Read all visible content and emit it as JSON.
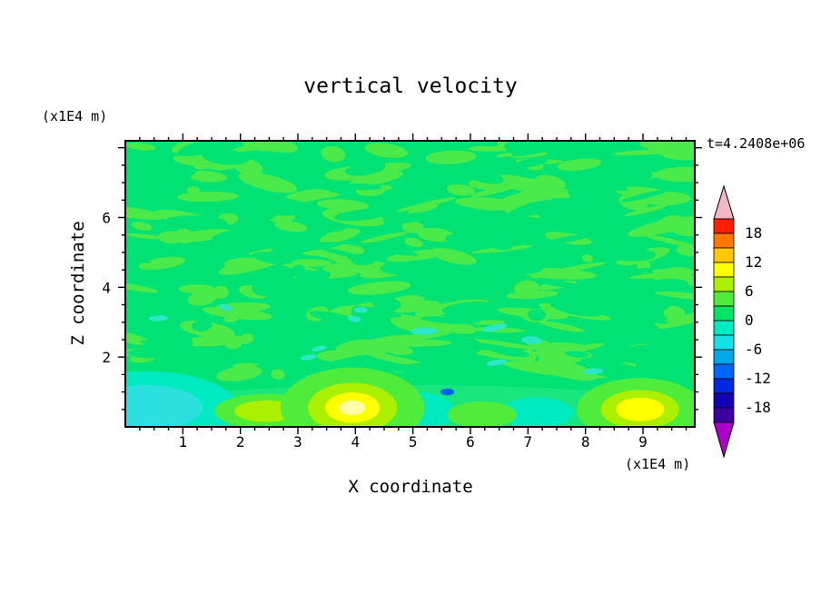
{
  "figure": {
    "title": "vertical velocity",
    "time_label": "t=4.2408e+06",
    "x_axis": {
      "label": "X coordinate",
      "unit": "(x1E4 m)",
      "ticks": [
        1,
        2,
        3,
        4,
        5,
        6,
        7,
        8,
        9
      ],
      "range": [
        0,
        9.9
      ]
    },
    "y_axis": {
      "label": "Z coordinate",
      "unit": "(x1E4 m)",
      "ticks": [
        2,
        4,
        6
      ],
      "range": [
        0,
        8.2
      ]
    }
  },
  "chart_data": {
    "type": "filled-contour",
    "title": "vertical velocity",
    "xlabel": "X coordinate (x1E4 m)",
    "ylabel": "Z coordinate (x1E4 m)",
    "time": "t=4.2408e+06",
    "x_range": [
      0,
      9.9
    ],
    "y_range": [
      0,
      8.2
    ],
    "contour_interval": 3,
    "contour_levels": [
      -21,
      -18,
      -15,
      -12,
      -9,
      -6,
      -3,
      0,
      3,
      6,
      9,
      12,
      15,
      18,
      21
    ],
    "colorbar": {
      "labels": [
        18,
        12,
        6,
        0,
        -6,
        -12,
        -18
      ],
      "over_color": "#f2b6c6",
      "under_color": "#aa00c8",
      "cell_colors_top_to_bottom": [
        "#ff1e00",
        "#ff7800",
        "#ffc800",
        "#ffff00",
        "#aaf000",
        "#50ec3c",
        "#00e464",
        "#00eac2",
        "#14e0e8",
        "#00a8e8",
        "#0064ff",
        "#0028e0",
        "#1400b4",
        "#3c00a0"
      ]
    },
    "field_summary": {
      "background_value_range": [
        0,
        3
      ],
      "description": "mostly weak vertical velocity (0 to 3) with speckled 3-6 mottling aloft; near-surface updraft plumes at x~2.5, 3.95, 6.2 and 8.95 (x1E4 m) peaking near 9-12; weak downdrafts (-3 to -6) near the surface around x~0-1.5, 5, 7.2 and 9.8"
    },
    "render": {
      "base_color": "#00e273",
      "texture": {
        "seed": 20240,
        "light_color": "#49ea49",
        "light_count": 170,
        "base_count": 115,
        "teal_color": "#2ce8c8",
        "teal_count": 12
      },
      "layer_scales": [
        1,
        0.62,
        0.38,
        0.18
      ],
      "features": [
        {
          "cx": 4.95,
          "cz": 0.3,
          "rx": 5.5,
          "rz": 0.9,
          "colors": [
            "#1ae67e"
          ]
        },
        {
          "cx": 0.35,
          "cz": 0.55,
          "rx": 1.6,
          "rz": 1.05,
          "colors": [
            "#00eac2",
            "#2ce0e0"
          ]
        },
        {
          "cx": 5.05,
          "cz": 0.45,
          "rx": 0.7,
          "rz": 0.55,
          "colors": [
            "#00eac2"
          ]
        },
        {
          "cx": 7.15,
          "cz": 0.4,
          "rx": 0.65,
          "rz": 0.45,
          "colors": [
            "#00eac2"
          ]
        },
        {
          "cx": 9.8,
          "cz": 0.5,
          "rx": 0.55,
          "rz": 0.55,
          "colors": [
            "#00eac2"
          ]
        },
        {
          "cx": 2.45,
          "cz": 0.45,
          "rx": 0.9,
          "rz": 0.5,
          "colors": [
            "#50ec3c",
            "#aaf000"
          ]
        },
        {
          "cx": 6.2,
          "cz": 0.35,
          "rx": 0.6,
          "rz": 0.38,
          "colors": [
            "#50ec3c"
          ]
        },
        {
          "cx": 3.95,
          "cz": 0.55,
          "rx": 1.25,
          "rz": 1.15,
          "colors": [
            "#50ec3c",
            "#aaf000",
            "#ffff00",
            "#ffffaa"
          ]
        },
        {
          "cx": 8.95,
          "cz": 0.5,
          "rx": 1.1,
          "rz": 0.9,
          "colors": [
            "#50ec3c",
            "#aaf000",
            "#ffff00"
          ]
        },
        {
          "cx": 5.6,
          "cz": 1.0,
          "rx": 0.12,
          "rz": 0.1,
          "colors": [
            "#0064ff"
          ]
        }
      ]
    }
  }
}
